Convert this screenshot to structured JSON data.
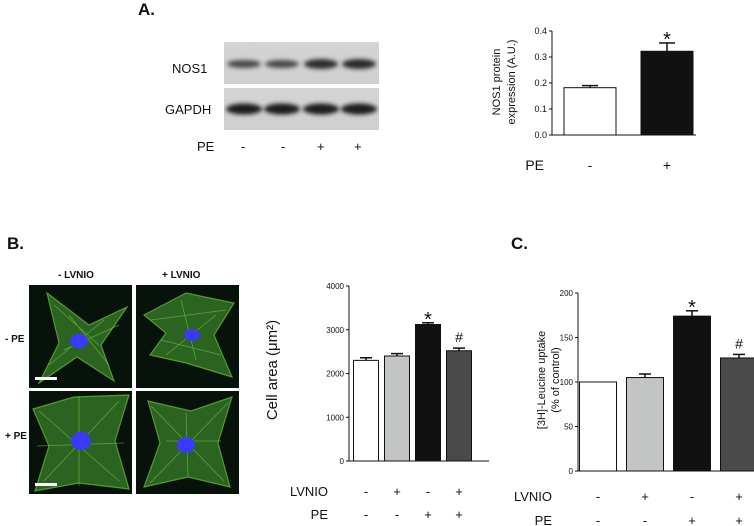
{
  "panel_a": {
    "letter": "A.",
    "blot": {
      "rows": [
        "NOS1",
        "GAPDH"
      ],
      "pe_label": "PE",
      "pe_signs": [
        "-",
        "-",
        "+",
        "+"
      ]
    }
  },
  "panel_b": {
    "letter": "B.",
    "micro": {
      "col_labels": [
        "- LVNIO",
        "+ LVNIO"
      ],
      "row_labels": [
        "- PE",
        "+ PE"
      ]
    }
  },
  "panel_c": {
    "letter": "C."
  },
  "colors": {
    "white": "#ffffff",
    "light_gray": "#c3c5c4",
    "black": "#111111",
    "dark_gray": "#4a4a4a",
    "cell_green": "#3d8a2a",
    "nucleus_blue": "#3a3aff"
  },
  "chart_data": [
    {
      "type": "bar",
      "categories": [
        "-",
        "+"
      ],
      "values": [
        0.182,
        0.322
      ],
      "errors": [
        0.008,
        0.032
      ],
      "significance": [
        "",
        "*"
      ],
      "factor_rows": [
        {
          "label": "PE",
          "signs": [
            "-",
            "+"
          ]
        }
      ],
      "ylabel": "NOS1 protein expression (A.U.)",
      "ylabel_lines": [
        "NOS1 protein",
        "expression (A.U.)"
      ],
      "ylim": [
        0,
        0.4
      ],
      "yticks": [
        "0.0",
        "0.1",
        "0.2",
        "0.3",
        "0.4"
      ],
      "bar_colors": [
        "#ffffff",
        "#111111"
      ]
    },
    {
      "type": "bar",
      "categories": [
        "- LVNIO / - PE",
        "+ LVNIO / - PE",
        "- LVNIO / + PE",
        "+ LVNIO / + PE"
      ],
      "values": [
        2300,
        2400,
        3120,
        2520
      ],
      "errors": [
        60,
        55,
        40,
        60
      ],
      "significance": [
        "",
        "",
        "*",
        "#"
      ],
      "factor_rows": [
        {
          "label": "LVNIO",
          "signs": [
            "-",
            "+",
            "-",
            "+"
          ]
        },
        {
          "label": "PE",
          "signs": [
            "-",
            "-",
            "+",
            "+"
          ]
        }
      ],
      "ylabel": "Cell area (μm²)",
      "ylabel_lines": [
        "Cell area (μm²)"
      ],
      "ylim": [
        0,
        4000
      ],
      "yticks": [
        "0",
        "1000",
        "2000",
        "3000",
        "4000"
      ],
      "bar_colors": [
        "#ffffff",
        "#c3c5c4",
        "#111111",
        "#4a4a4a"
      ]
    },
    {
      "type": "bar",
      "categories": [
        "- LVNIO / - PE",
        "+ LVNIO / - PE",
        "- LVNIO / + PE",
        "+ LVNIO / + PE"
      ],
      "values": [
        100,
        105,
        174,
        127
      ],
      "errors": [
        0,
        4,
        6,
        4
      ],
      "significance": [
        "",
        "",
        "*",
        "#"
      ],
      "factor_rows": [
        {
          "label": "LVNIO",
          "signs": [
            "-",
            "+",
            "-",
            "+"
          ]
        },
        {
          "label": "PE",
          "signs": [
            "-",
            "-",
            "+",
            "+"
          ]
        }
      ],
      "ylabel": "[3H]-Leucine uptake (% of control)",
      "ylabel_lines": [
        "[3H]-Leucine uptake",
        "(% of control)"
      ],
      "ylim": [
        0,
        200
      ],
      "yticks": [
        "0",
        "50",
        "100",
        "150",
        "200"
      ],
      "bar_colors": [
        "#ffffff",
        "#c3c5c4",
        "#111111",
        "#4a4a4a"
      ]
    }
  ]
}
